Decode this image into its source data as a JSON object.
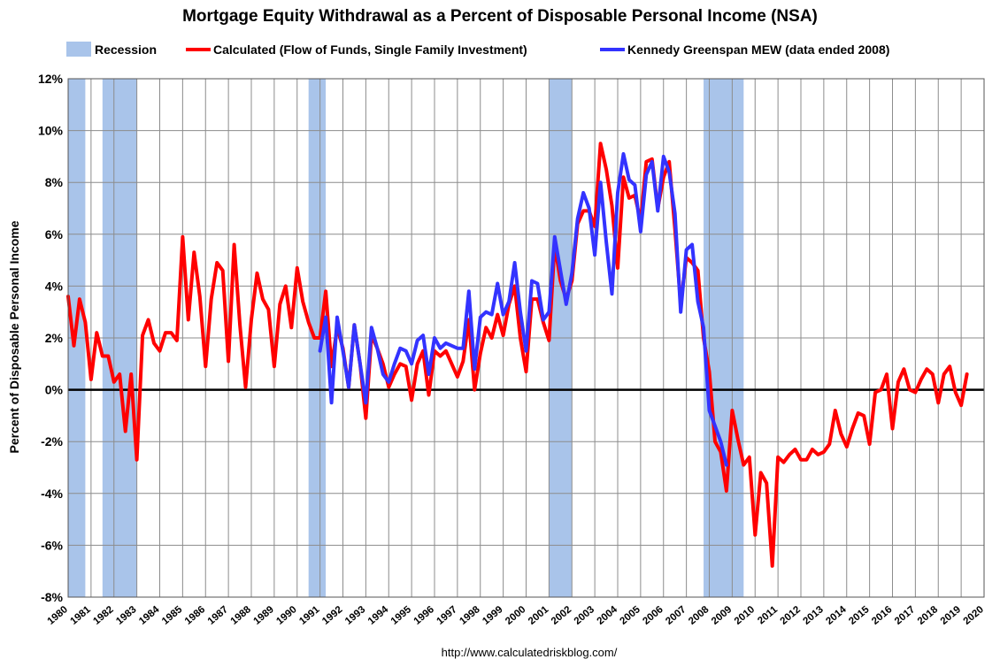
{
  "chart_data": {
    "type": "line",
    "title": "Mortgage Equity Withdrawal as a Percent of Disposable Personal Income (NSA)",
    "ylabel": "Percent of Disposable Personal Income",
    "footer": "http://www.calculatedriskblog.com/",
    "xlim": [
      1980,
      2020
    ],
    "ylim": [
      -8,
      12
    ],
    "grid": true,
    "legend_placement": "top",
    "x_tick_labels": [
      "1980",
      "1981",
      "1982",
      "1983",
      "1984",
      "1985",
      "1986",
      "1987",
      "1988",
      "1989",
      "1990",
      "1991",
      "1992",
      "1993",
      "1994",
      "1995",
      "1996",
      "1997",
      "1998",
      "1999",
      "2000",
      "2001",
      "2002",
      "2003",
      "2004",
      "2005",
      "2006",
      "2007",
      "2008",
      "2009",
      "2010",
      "2011",
      "2012",
      "2013",
      "2014",
      "2015",
      "2016",
      "2017",
      "2018",
      "2019",
      "2020"
    ],
    "y_ticks": [
      -8,
      -6,
      -4,
      -2,
      0,
      2,
      4,
      6,
      8,
      10,
      12
    ],
    "y_tick_labels": [
      "-8%",
      "-6%",
      "-4%",
      "-2%",
      "0%",
      "2%",
      "4%",
      "6%",
      "8%",
      "10%",
      "12%"
    ],
    "recessions": {
      "name": "Recession",
      "color": "#a9c4ea",
      "periods": [
        [
          1980.0,
          1980.75
        ],
        [
          1981.5,
          1983.0
        ],
        [
          1990.5,
          1991.25
        ],
        [
          2001.0,
          2002.0
        ],
        [
          2007.75,
          2009.5
        ]
      ]
    },
    "series": [
      {
        "name": "Calculated (Flow of Funds, Single Family Investment)",
        "color": "#ff0000",
        "x": [
          1980.0,
          1980.25,
          1980.5,
          1980.75,
          1981.0,
          1981.25,
          1981.5,
          1981.75,
          1982.0,
          1982.25,
          1982.5,
          1982.75,
          1983.0,
          1983.25,
          1983.5,
          1983.75,
          1984.0,
          1984.25,
          1984.5,
          1984.75,
          1985.0,
          1985.25,
          1985.5,
          1985.75,
          1986.0,
          1986.25,
          1986.5,
          1986.75,
          1987.0,
          1987.25,
          1987.5,
          1987.75,
          1988.0,
          1988.25,
          1988.5,
          1988.75,
          1989.0,
          1989.25,
          1989.5,
          1989.75,
          1990.0,
          1990.25,
          1990.5,
          1990.75,
          1991.0,
          1991.25,
          1991.5,
          1991.75,
          1992.0,
          1992.25,
          1992.5,
          1992.75,
          1993.0,
          1993.25,
          1993.5,
          1993.75,
          1994.0,
          1994.25,
          1994.5,
          1994.75,
          1995.0,
          1995.25,
          1995.5,
          1995.75,
          1996.0,
          1996.25,
          1996.5,
          1996.75,
          1997.0,
          1997.25,
          1997.5,
          1997.75,
          1998.0,
          1998.25,
          1998.5,
          1998.75,
          1999.0,
          1999.25,
          1999.5,
          1999.75,
          2000.0,
          2000.25,
          2000.5,
          2000.75,
          2001.0,
          2001.25,
          2001.5,
          2001.75,
          2002.0,
          2002.25,
          2002.5,
          2002.75,
          2003.0,
          2003.25,
          2003.5,
          2003.75,
          2004.0,
          2004.25,
          2004.5,
          2004.75,
          2005.0,
          2005.25,
          2005.5,
          2005.75,
          2006.0,
          2006.25,
          2006.5,
          2006.75,
          2007.0,
          2007.25,
          2007.5,
          2007.75,
          2008.0,
          2008.25,
          2008.5,
          2008.75,
          2009.0,
          2009.25,
          2009.5,
          2009.75,
          2010.0,
          2010.25,
          2010.5,
          2010.75,
          2011.0,
          2011.25,
          2011.5,
          2011.75,
          2012.0,
          2012.25,
          2012.5,
          2012.75,
          2013.0,
          2013.25,
          2013.5,
          2013.75,
          2014.0,
          2014.25,
          2014.5,
          2014.75,
          2015.0,
          2015.25,
          2015.5,
          2015.75,
          2016.0,
          2016.25,
          2016.5,
          2016.75,
          2017.0,
          2017.25,
          2017.5,
          2017.75,
          2018.0,
          2018.25,
          2018.5,
          2018.75,
          2019.0,
          2019.25
        ],
        "y": [
          3.6,
          1.7,
          3.5,
          2.6,
          0.4,
          2.2,
          1.3,
          1.3,
          0.3,
          0.6,
          -1.6,
          0.6,
          -2.7,
          2.1,
          2.7,
          1.8,
          1.5,
          2.2,
          2.2,
          1.9,
          5.9,
          2.7,
          5.3,
          3.6,
          0.9,
          3.5,
          4.9,
          4.6,
          1.1,
          5.6,
          2.5,
          0.1,
          2.7,
          4.5,
          3.5,
          3.1,
          0.9,
          3.3,
          4.0,
          2.4,
          4.7,
          3.4,
          2.6,
          2.0,
          2.0,
          3.8,
          0.9,
          2.4,
          1.6,
          0.1,
          2.5,
          1.0,
          -1.1,
          2.1,
          1.6,
          1.0,
          0.1,
          0.6,
          1.0,
          0.9,
          -0.4,
          1.0,
          1.5,
          -0.2,
          1.5,
          1.3,
          1.5,
          1.0,
          0.5,
          1.1,
          2.7,
          0.0,
          1.4,
          2.4,
          2.0,
          2.9,
          2.1,
          3.3,
          4.0,
          2.0,
          0.7,
          3.5,
          3.5,
          2.6,
          1.9,
          5.6,
          4.2,
          3.5,
          4.2,
          6.4,
          6.9,
          6.9,
          6.3,
          9.5,
          8.5,
          7.1,
          4.7,
          8.2,
          7.4,
          7.5,
          6.5,
          8.8,
          8.9,
          7.0,
          8.2,
          8.8,
          6.2,
          3.3,
          5.1,
          4.9,
          4.6,
          2.0,
          0.7,
          -2.0,
          -2.4,
          -3.9,
          -0.8,
          -1.9,
          -2.9,
          -2.6,
          -5.6,
          -3.2,
          -3.6,
          -6.8,
          -2.6,
          -2.8,
          -2.5,
          -2.3,
          -2.7,
          -2.7,
          -2.3,
          -2.5,
          -2.4,
          -2.1,
          -0.8,
          -1.7,
          -2.2,
          -1.5,
          -0.9,
          -1.0,
          -2.1,
          -0.1,
          0.0,
          0.6,
          -1.5,
          0.3,
          0.8,
          0.0,
          -0.1,
          0.4,
          0.8,
          0.6,
          -0.5,
          0.6,
          0.9,
          -0.1,
          -0.6,
          0.6
        ]
      },
      {
        "name": "Kennedy Greenspan MEW (data ended 2008)",
        "color": "#3333ff",
        "x": [
          1991.0,
          1991.25,
          1991.5,
          1991.75,
          1992.0,
          1992.25,
          1992.5,
          1992.75,
          1993.0,
          1993.25,
          1993.5,
          1993.75,
          1994.0,
          1994.25,
          1994.5,
          1994.75,
          1995.0,
          1995.25,
          1995.5,
          1995.75,
          1996.0,
          1996.25,
          1996.5,
          1996.75,
          1997.0,
          1997.25,
          1997.5,
          1997.75,
          1998.0,
          1998.25,
          1998.5,
          1998.75,
          1999.0,
          1999.25,
          1999.5,
          1999.75,
          2000.0,
          2000.25,
          2000.5,
          2000.75,
          2001.0,
          2001.25,
          2001.5,
          2001.75,
          2002.0,
          2002.25,
          2002.5,
          2002.75,
          2003.0,
          2003.25,
          2003.5,
          2003.75,
          2004.0,
          2004.25,
          2004.5,
          2004.75,
          2005.0,
          2005.25,
          2005.5,
          2005.75,
          2006.0,
          2006.25,
          2006.5,
          2006.75,
          2007.0,
          2007.25,
          2007.5,
          2007.75,
          2008.0,
          2008.25,
          2008.5,
          2008.75
        ],
        "y": [
          1.5,
          2.8,
          -0.5,
          2.8,
          1.5,
          0.1,
          2.5,
          1.0,
          -0.5,
          2.4,
          1.6,
          0.6,
          0.3,
          1.0,
          1.6,
          1.5,
          1.0,
          1.9,
          2.1,
          0.6,
          2.0,
          1.6,
          1.8,
          1.7,
          1.6,
          1.6,
          3.8,
          0.8,
          2.8,
          3.0,
          2.9,
          4.1,
          2.9,
          3.4,
          4.9,
          3.0,
          1.5,
          4.2,
          4.1,
          2.7,
          3.0,
          5.9,
          4.6,
          3.3,
          4.5,
          6.6,
          7.6,
          7.0,
          5.2,
          8.0,
          5.7,
          3.7,
          7.6,
          9.1,
          8.1,
          7.9,
          6.1,
          8.3,
          8.8,
          6.9,
          9.0,
          8.4,
          6.8,
          3.0,
          5.4,
          5.6,
          3.4,
          2.4,
          -0.8,
          -1.4,
          -2.0,
          -2.9
        ]
      }
    ]
  }
}
